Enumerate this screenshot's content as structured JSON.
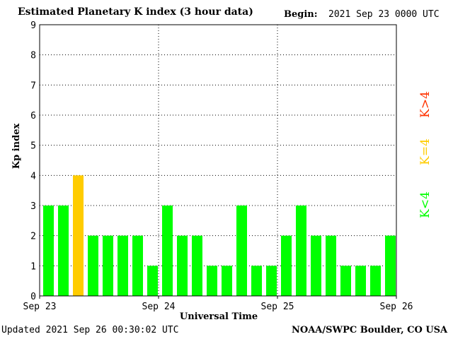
{
  "header": {
    "title": "Estimated Planetary K index (3 hour data)",
    "begin_label": "Begin:",
    "begin_value": "2021 Sep 23 0000 UTC"
  },
  "footer": {
    "updated": "Updated 2021 Sep 26 00:30:02 UTC",
    "credit": "NOAA/SWPC Boulder, CO USA"
  },
  "chart_data": {
    "type": "bar",
    "title": "Estimated Planetary K index (3 hour data)",
    "xlabel": "Universal Time",
    "ylabel": "Kp index",
    "ylim": [
      0,
      9
    ],
    "yticks": [
      "0",
      "1",
      "2",
      "3",
      "4",
      "5",
      "6",
      "7",
      "8",
      "9"
    ],
    "xticks": [
      "Sep 23",
      "Sep 24",
      "Sep 25",
      "Sep 26"
    ],
    "grid": true,
    "values": [
      3,
      3,
      4,
      2,
      2,
      2,
      2,
      1,
      3,
      2,
      2,
      1,
      1,
      3,
      1,
      1,
      2,
      3,
      2,
      2,
      1,
      1,
      1,
      2
    ],
    "colors": {
      "below4": "#00ff00",
      "equal4": "#ffcc00",
      "above4": "#ff3300"
    },
    "legend": {
      "placement": "right",
      "entries": [
        "K<4",
        "K=4",
        "K>4"
      ]
    }
  }
}
